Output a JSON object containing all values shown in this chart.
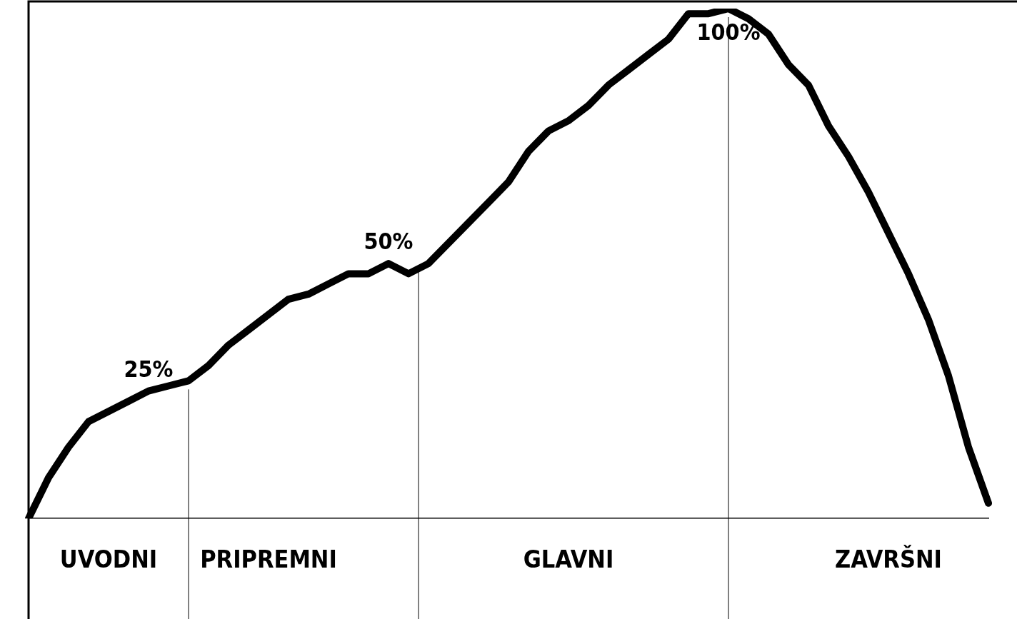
{
  "chart_data": {
    "type": "line",
    "tick_labels": "x",
    "categories": [
      null,
      null,
      null,
      null,
      "UVODNI",
      null,
      null,
      null,
      null,
      null,
      null,
      null,
      "PRIPREMNI",
      null,
      null,
      null,
      null,
      null,
      null,
      null,
      null,
      null,
      null,
      null,
      null,
      null,
      null,
      "GLAVNI",
      null,
      null,
      null,
      null,
      null,
      null,
      null,
      null,
      null,
      null,
      null,
      null,
      null,
      null,
      null,
      "ZAVRŠNI",
      null,
      null,
      null,
      null,
      null
    ],
    "series": [
      {
        "color": "#000000",
        "values": [
          0,
          8,
          14,
          19,
          21,
          23,
          25,
          26,
          27,
          30,
          34,
          37,
          40,
          43,
          44,
          46,
          48,
          48,
          50,
          48,
          50,
          54,
          58,
          62,
          66,
          72,
          76,
          78,
          81,
          85,
          88,
          91,
          94,
          99,
          99,
          100,
          98,
          95,
          89,
          85,
          77,
          71,
          64,
          56,
          48,
          39,
          28,
          14,
          3
        ],
        "value_labels": [
          null,
          null,
          null,
          null,
          null,
          null,
          "25%",
          null,
          null,
          null,
          null,
          null,
          null,
          null,
          null,
          null,
          null,
          null,
          "50%",
          null,
          null,
          null,
          null,
          null,
          null,
          null,
          null,
          null,
          null,
          null,
          null,
          null,
          null,
          null,
          null,
          "100%",
          null,
          null,
          null,
          null,
          null,
          null,
          null,
          null,
          null,
          null,
          null,
          null,
          null
        ]
      }
    ],
    "marker": "none",
    "line_style": "solid",
    "legend": false
  }
}
